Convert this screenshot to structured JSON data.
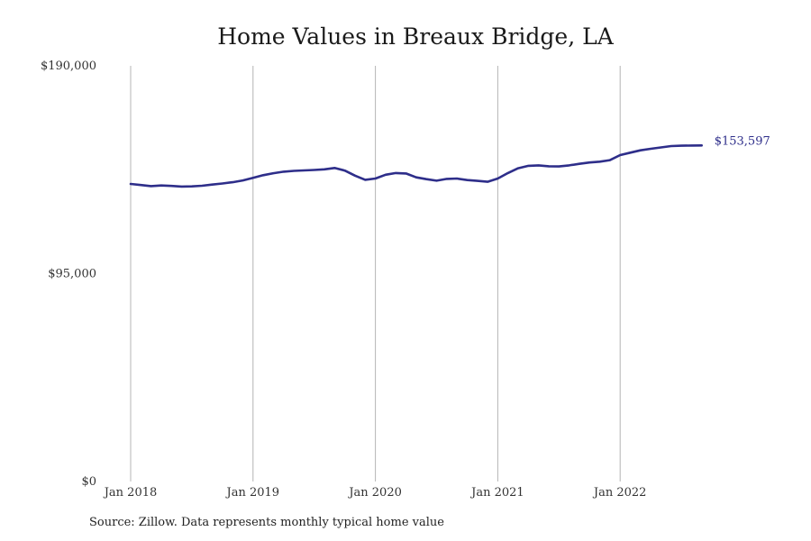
{
  "title": "Home Values in Breaux Bridge, LA",
  "source": "Source: Zillow. Data represents monthly typical home value",
  "colors": {
    "series": "#2e2e8a",
    "grid": "#b4b4b4",
    "text": "#333333"
  },
  "chart_data": {
    "type": "line",
    "title": "Home Values in Breaux Bridge, LA",
    "xlabel": "",
    "ylabel": "",
    "xlim": [
      "2018-01",
      "2022-09"
    ],
    "ylim": [
      0,
      190000
    ],
    "y_ticks": [
      0,
      95000,
      190000
    ],
    "y_tick_labels": [
      "$0",
      "$95,000",
      "$190,000"
    ],
    "x_ticks": [
      "2018-01",
      "2019-01",
      "2020-01",
      "2021-01",
      "2022-01"
    ],
    "x_tick_labels": [
      "Jan 2018",
      "Jan 2019",
      "Jan 2020",
      "Jan 2021",
      "Jan 2022"
    ],
    "grid": {
      "vertical": true,
      "horizontal": false
    },
    "legend": "none",
    "end_label": "$153,597",
    "series": [
      {
        "x": [
          "2018-01",
          "2018-02",
          "2018-03",
          "2018-04",
          "2018-05",
          "2018-06",
          "2018-07",
          "2018-08",
          "2018-09",
          "2018-10",
          "2018-11",
          "2018-12",
          "2019-01",
          "2019-02",
          "2019-03",
          "2019-04",
          "2019-05",
          "2019-06",
          "2019-07",
          "2019-08",
          "2019-09",
          "2019-10",
          "2019-11",
          "2019-12",
          "2020-01",
          "2020-02",
          "2020-03",
          "2020-04",
          "2020-05",
          "2020-06",
          "2020-07",
          "2020-08",
          "2020-09",
          "2020-10",
          "2020-11",
          "2020-12",
          "2021-01",
          "2021-02",
          "2021-03",
          "2021-04",
          "2021-05",
          "2021-06",
          "2021-07",
          "2021-08",
          "2021-09",
          "2021-10",
          "2021-11",
          "2021-12",
          "2022-01",
          "2022-02",
          "2022-03",
          "2022-04",
          "2022-05",
          "2022-06",
          "2022-07",
          "2022-08",
          "2022-09"
        ],
        "values": [
          136000,
          135500,
          135000,
          135300,
          135100,
          134800,
          134900,
          135200,
          135700,
          136200,
          136800,
          137600,
          138800,
          140000,
          140900,
          141600,
          142000,
          142200,
          142400,
          142700,
          143300,
          142100,
          139800,
          137900,
          138500,
          140200,
          141000,
          140800,
          139000,
          138200,
          137500,
          138300,
          138500,
          137800,
          137400,
          137000,
          138500,
          141000,
          143200,
          144300,
          144500,
          144100,
          144000,
          144500,
          145200,
          145800,
          146200,
          146900,
          149200,
          150300,
          151400,
          152100,
          152700,
          153300,
          153500,
          153550,
          153597
        ]
      }
    ]
  }
}
